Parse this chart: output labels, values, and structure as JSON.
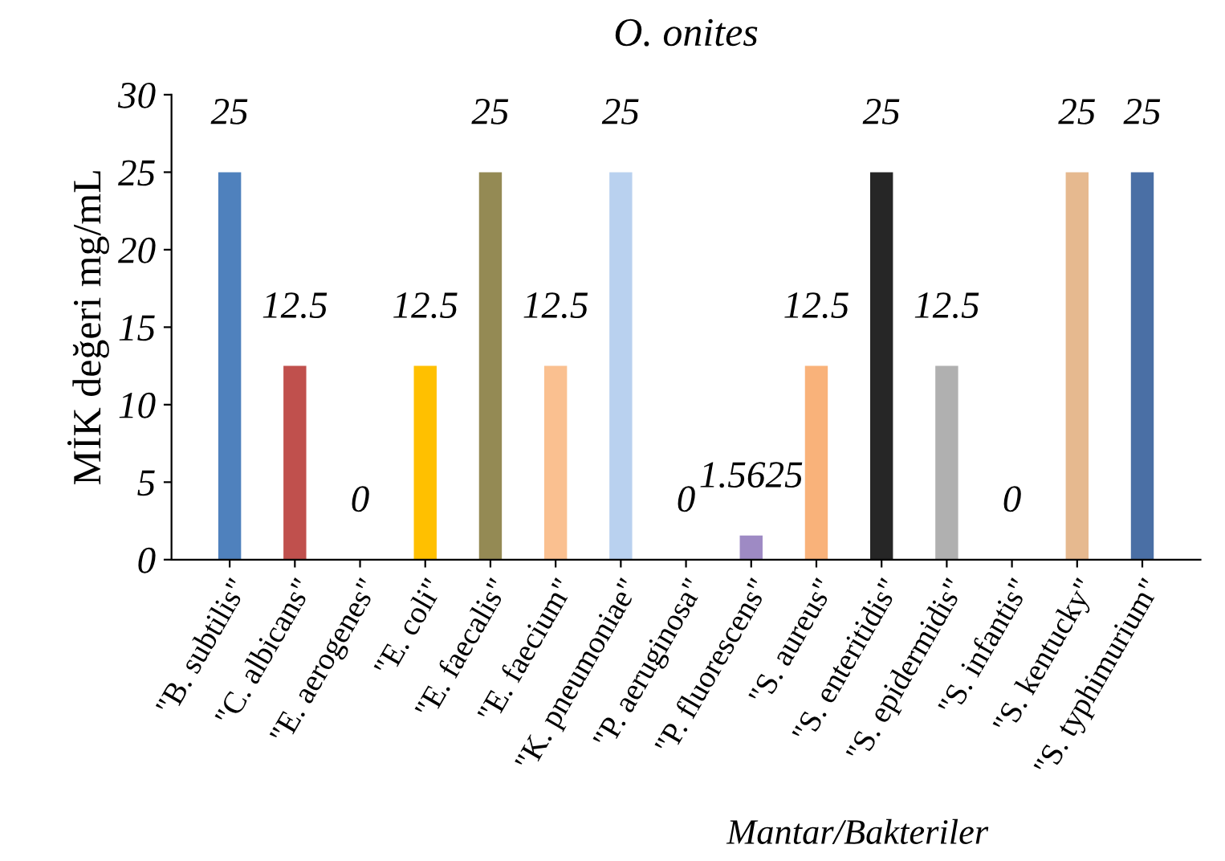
{
  "chart_data": {
    "type": "bar",
    "title": "O. onites",
    "xlabel": "Mantar/Bakteriler",
    "ylabel": "MİK değeri mg/mL",
    "categories": [
      "\"B. subtilis\"",
      "\"C. albicans\"",
      "\"E. aerogenes\"",
      "\"E. coli\"",
      "\"E. faecalis\"",
      "\"E. faecium\"",
      "\"K. pneumoniae\"",
      "\"P. aeruginosa\"",
      "\"P. fluorescens\"",
      "\"S. aureus\"",
      "\"S. enteritidis\"",
      "\"S. epidermidis\"",
      "\"S. infantis\"",
      "\"S. kentucky\"",
      "\"S. typhimurium\""
    ],
    "values": [
      25,
      12.5,
      0,
      12.5,
      25,
      12.5,
      25,
      0,
      1.5625,
      12.5,
      25,
      12.5,
      0,
      25,
      25
    ],
    "colors": [
      "#4f81bd",
      "#c0504d",
      "#6b8e23",
      "#ffc000",
      "#948a54",
      "#fac090",
      "#b9d1ef",
      "#9bbb59",
      "#9e8ac4",
      "#f9b27a",
      "#262626",
      "#b0b0b0",
      "#76923c",
      "#e6b98f",
      "#4a6fa5"
    ],
    "ylim": [
      0,
      30
    ],
    "yticks": [
      0,
      5,
      10,
      15,
      20,
      25,
      30
    ],
    "grid": false,
    "data_labels": true
  }
}
